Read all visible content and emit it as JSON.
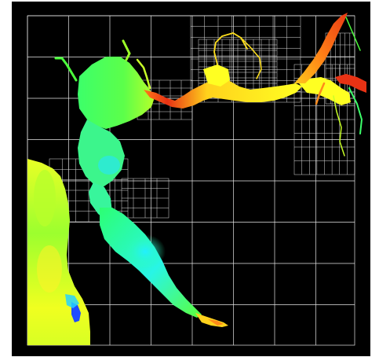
{
  "visualization": {
    "kind": "adaptive-mesh-refinement flow field over a bay and delta",
    "background_color": "#000000",
    "outer_background": "#ffffff",
    "grid_line_color": "#e6e6e6",
    "colormap": [
      "#1e3cff",
      "#22e6ff",
      "#3cff6a",
      "#c8ff28",
      "#ffff20",
      "#ff8a1a",
      "#e83214"
    ],
    "text_labels": []
  }
}
